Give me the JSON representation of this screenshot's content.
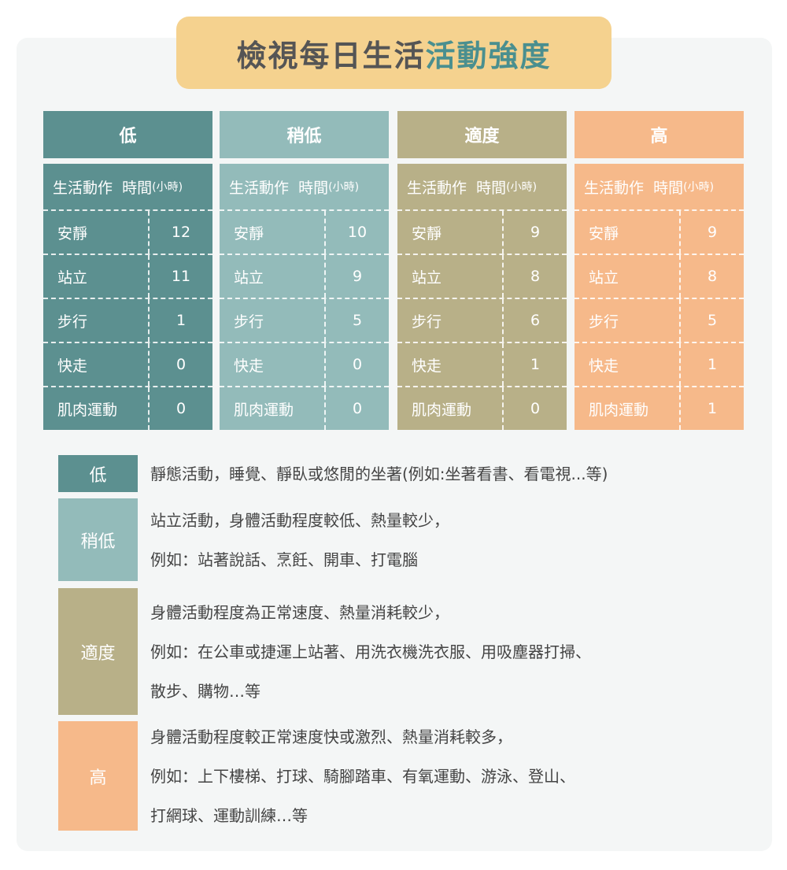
{
  "title": {
    "main": "檢視每日生活",
    "highlight": "活動強度"
  },
  "colors": {
    "low": "#5c9090",
    "mid_low": "#93bbba",
    "moderate": "#b8b088",
    "high": "#f6b98a",
    "title_bg": "#f5d28f"
  },
  "columns": [
    {
      "header": "低",
      "sub_activity": "生活動作",
      "sub_time": "時間",
      "sub_unit": "(小時)",
      "rows": [
        {
          "label": "安靜",
          "value": "12"
        },
        {
          "label": "站立",
          "value": "11"
        },
        {
          "label": "步行",
          "value": "1"
        },
        {
          "label": "快走",
          "value": "0"
        },
        {
          "label": "肌肉運動",
          "value": "0"
        }
      ]
    },
    {
      "header": "稍低",
      "sub_activity": "生活動作",
      "sub_time": "時間",
      "sub_unit": "(小時)",
      "rows": [
        {
          "label": "安靜",
          "value": "10"
        },
        {
          "label": "站立",
          "value": "9"
        },
        {
          "label": "步行",
          "value": "5"
        },
        {
          "label": "快走",
          "value": "0"
        },
        {
          "label": "肌肉運動",
          "value": "0"
        }
      ]
    },
    {
      "header": "適度",
      "sub_activity": "生活動作",
      "sub_time": "時間",
      "sub_unit": "(小時)",
      "rows": [
        {
          "label": "安靜",
          "value": "9"
        },
        {
          "label": "站立",
          "value": "8"
        },
        {
          "label": "步行",
          "value": "6"
        },
        {
          "label": "快走",
          "value": "1"
        },
        {
          "label": "肌肉運動",
          "value": "0"
        }
      ]
    },
    {
      "header": "高",
      "sub_activity": "生活動作",
      "sub_time": "時間",
      "sub_unit": "(小時)",
      "rows": [
        {
          "label": "安靜",
          "value": "9"
        },
        {
          "label": "站立",
          "value": "8"
        },
        {
          "label": "步行",
          "value": "5"
        },
        {
          "label": "快走",
          "value": "1"
        },
        {
          "label": "肌肉運動",
          "value": "1"
        }
      ]
    }
  ],
  "legend": [
    {
      "tag": "低",
      "lines": [
        "靜態活動，睡覺、靜臥或悠閒的坐著(例如:坐著看書、看電視...等)"
      ]
    },
    {
      "tag": "稍低",
      "lines": [
        "站立活動，身體活動程度較低、熱量較少，",
        "例如：站著說話、烹飪、開車、打電腦"
      ]
    },
    {
      "tag": "適度",
      "lines": [
        "身體活動程度為正常速度、熱量消耗較少，",
        "例如：在公車或捷運上站著、用洗衣機洗衣服、用吸塵器打掃、",
        "散步、購物…等"
      ]
    },
    {
      "tag": "高",
      "lines": [
        "身體活動程度較正常速度快或激烈、熱量消耗較多，",
        "例如：上下樓梯、打球、騎腳踏車、有氧運動、游泳、登山、",
        "打網球、運動訓練…等"
      ]
    }
  ]
}
